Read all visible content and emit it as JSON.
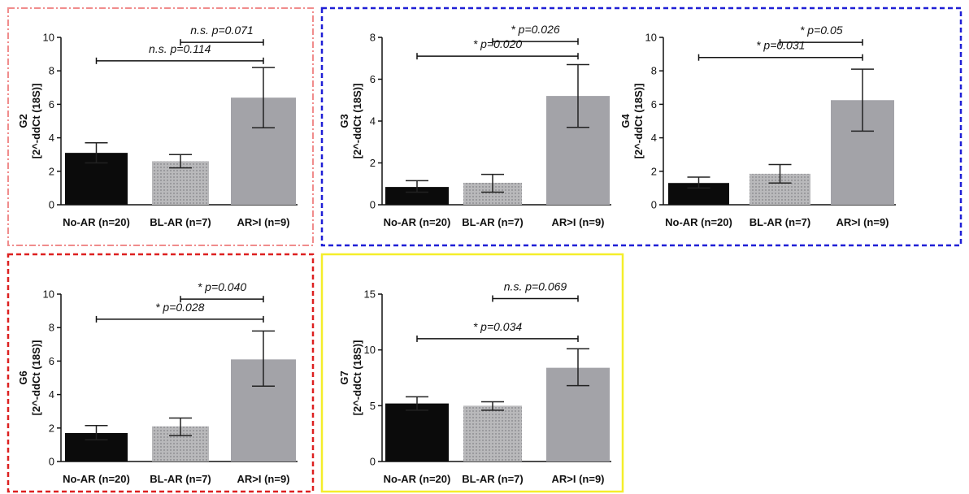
{
  "frame_colors": {
    "G2": "#f08c8c",
    "G3_G4": "#1f1fd6",
    "G6": "#dd2020",
    "G7": "#f5ee2a"
  },
  "bar_colors": [
    "#0b0b0b",
    "#b9b9bb",
    "#a3a3a8"
  ],
  "chart_data": [
    {
      "id": "G2",
      "type": "bar",
      "categories": [
        "No-AR (n=20)",
        "BL-AR (n=7)",
        "AR>I (n=9)"
      ],
      "values": [
        3.1,
        2.6,
        6.4
      ],
      "error": [
        [
          2.5,
          3.7
        ],
        [
          2.2,
          3.0
        ],
        [
          4.6,
          8.2
        ]
      ],
      "ylim": [
        0,
        10
      ],
      "yticks": [
        0,
        2,
        4,
        6,
        8,
        10
      ],
      "ylabel": "G2",
      "ylabel2": "[2^-ddCt (18S)]",
      "comparisons": [
        {
          "from": 1,
          "to": 2,
          "y": 9.7,
          "label": "n.s. p=0.071"
        },
        {
          "from": 0,
          "to": 2,
          "y": 8.6,
          "label": "n.s. p=0.114"
        }
      ]
    },
    {
      "id": "G3",
      "type": "bar",
      "categories": [
        "No-AR (n=20)",
        "BL-AR (n=7)",
        "AR>I (n=9)"
      ],
      "values": [
        0.85,
        1.05,
        5.2
      ],
      "error": [
        [
          0.6,
          1.15
        ],
        [
          0.6,
          1.45
        ],
        [
          3.7,
          6.7
        ]
      ],
      "ylim": [
        0,
        8
      ],
      "yticks": [
        0,
        2,
        4,
        6,
        8
      ],
      "ylabel": "G3",
      "ylabel2": "[2^-ddCt (18S)]",
      "comparisons": [
        {
          "from": 1,
          "to": 2,
          "y": 7.8,
          "label": "* p=0.026"
        },
        {
          "from": 0,
          "to": 2,
          "y": 7.1,
          "label": "* p=0.020"
        }
      ]
    },
    {
      "id": "G4",
      "type": "bar",
      "categories": [
        "No-AR (n=20)",
        "BL-AR (n=7)",
        "AR>I (n=9)"
      ],
      "values": [
        1.3,
        1.85,
        6.25
      ],
      "error": [
        [
          1.0,
          1.65
        ],
        [
          1.3,
          2.4
        ],
        [
          4.4,
          8.1
        ]
      ],
      "ylim": [
        0,
        10
      ],
      "yticks": [
        0,
        2,
        4,
        6,
        8,
        10
      ],
      "ylabel": "G4",
      "ylabel2": "[2^-ddCt (18S)]",
      "comparisons": [
        {
          "from": 1,
          "to": 2,
          "y": 9.7,
          "label": "* p=0.05"
        },
        {
          "from": 0,
          "to": 2,
          "y": 8.8,
          "label": "* p=0.031"
        }
      ]
    },
    {
      "id": "G6",
      "type": "bar",
      "categories": [
        "No-AR (n=20)",
        "BL-AR (n=7)",
        "AR>I (n=9)"
      ],
      "values": [
        1.7,
        2.1,
        6.1
      ],
      "error": [
        [
          1.3,
          2.15
        ],
        [
          1.55,
          2.6
        ],
        [
          4.5,
          7.8
        ]
      ],
      "ylim": [
        0,
        10
      ],
      "yticks": [
        0,
        2,
        4,
        6,
        8,
        10
      ],
      "ylabel": "G6",
      "ylabel2": "[2^-ddCt (18S)]",
      "comparisons": [
        {
          "from": 1,
          "to": 2,
          "y": 9.7,
          "label": "* p=0.040"
        },
        {
          "from": 0,
          "to": 2,
          "y": 8.5,
          "label": "* p=0.028"
        }
      ]
    },
    {
      "id": "G7",
      "type": "bar",
      "categories": [
        "No-AR (n=20)",
        "BL-AR (n=7)",
        "AR>I (n=9)"
      ],
      "values": [
        5.2,
        5.0,
        8.4
      ],
      "error": [
        [
          4.6,
          5.8
        ],
        [
          4.6,
          5.35
        ],
        [
          6.8,
          10.1
        ]
      ],
      "ylim": [
        0,
        15
      ],
      "yticks": [
        0,
        5,
        10,
        15
      ],
      "ylabel": "G7",
      "ylabel2": "[2^-ddCt (18S)]",
      "comparisons": [
        {
          "from": 1,
          "to": 2,
          "y": 14.6,
          "label": "n.s. p=0.069"
        },
        {
          "from": 0,
          "to": 2,
          "y": 11.0,
          "label": "* p=0.034"
        }
      ]
    }
  ]
}
